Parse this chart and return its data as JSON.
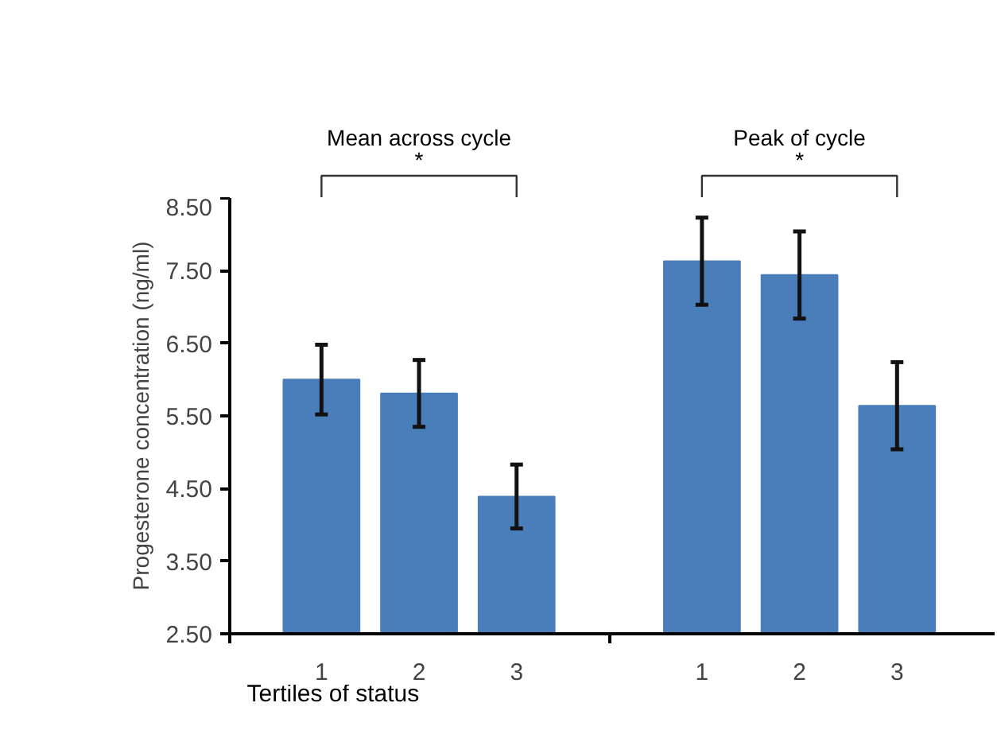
{
  "chart_data": {
    "type": "bar",
    "categories": [
      "1",
      "2",
      "3",
      "1",
      "2",
      "3"
    ],
    "values": [
      6.0,
      5.81,
      4.39,
      7.63,
      7.44,
      5.64
    ],
    "errors": [
      0.48,
      0.46,
      0.44,
      0.6,
      0.6,
      0.6
    ],
    "color": "#4a7ebb",
    "xlabel": "Tertiles of status",
    "ylabel": "Progesterone concentration (ng/ml)",
    "ylim": [
      2.5,
      8.5
    ],
    "yticks": [
      {
        "value": 2.5,
        "label": "2.50"
      },
      {
        "value": 3.5,
        "label": "3.50"
      },
      {
        "value": 4.5,
        "label": "4.50"
      },
      {
        "value": 5.5,
        "label": "5.50"
      },
      {
        "value": 6.5,
        "label": "6.50"
      },
      {
        "value": 7.5,
        "label": "7.50"
      },
      {
        "value": 8.5,
        "label": "8.50"
      }
    ],
    "annotations": [
      "Mean across cycle",
      "*",
      "Peak of cycle",
      "*"
    ],
    "grid": false
  }
}
